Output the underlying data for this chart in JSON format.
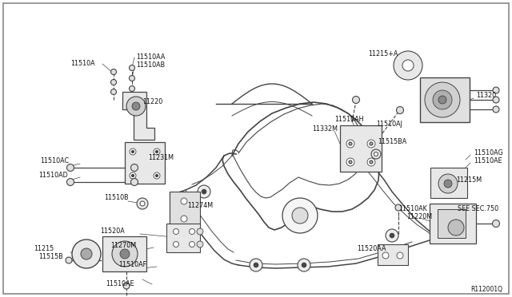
{
  "bg_color": "#ffffff",
  "border_color": "#aaaaaa",
  "line_color": "#444444",
  "text_color": "#111111",
  "ref_code": "R112001Q",
  "figsize": [
    6.4,
    3.72
  ],
  "dpi": 100,
  "xlim": [
    0,
    640
  ],
  "ylim": [
    0,
    372
  ]
}
